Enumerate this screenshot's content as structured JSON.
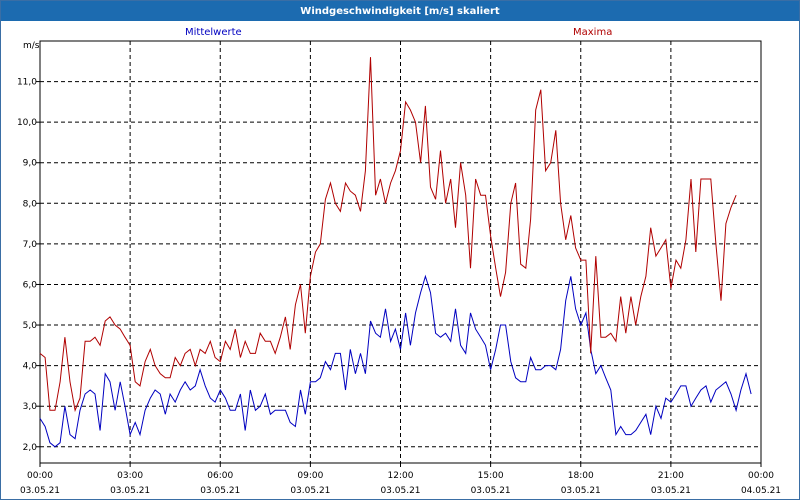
{
  "title": "Windgeschwindigkeit [m/s] skaliert",
  "chart_data": {
    "type": "line",
    "ylabel": "m/s",
    "ylim": [
      1.6,
      12.0
    ],
    "y_ticks": [
      {
        "value": 2.0,
        "label": "2,0"
      },
      {
        "value": 3.0,
        "label": "3,0"
      },
      {
        "value": 4.0,
        "label": "4,0"
      },
      {
        "value": 5.0,
        "label": "5,0"
      },
      {
        "value": 6.0,
        "label": "6,0"
      },
      {
        "value": 7.0,
        "label": "7,0"
      },
      {
        "value": 8.0,
        "label": "8,0"
      },
      {
        "value": 9.0,
        "label": "9,0"
      },
      {
        "value": 10.0,
        "label": "10,0"
      },
      {
        "value": 11.0,
        "label": "11,0"
      }
    ],
    "x_ticks": [
      {
        "hour": 0,
        "time": "00:00",
        "date": "03.05.21"
      },
      {
        "hour": 3,
        "time": "03:00",
        "date": "03.05.21"
      },
      {
        "hour": 6,
        "time": "06:00",
        "date": "03.05.21"
      },
      {
        "hour": 9,
        "time": "09:00",
        "date": "03.05.21"
      },
      {
        "hour": 12,
        "time": "12:00",
        "date": "03.05.21"
      },
      {
        "hour": 15,
        "time": "15:00",
        "date": "03.05.21"
      },
      {
        "hour": 18,
        "time": "18:00",
        "date": "03.05.21"
      },
      {
        "hour": 21,
        "time": "21:00",
        "date": "03.05.21"
      },
      {
        "hour": 24,
        "time": "00:00",
        "date": "04.05.21"
      }
    ],
    "xlim": [
      0,
      24
    ],
    "grid": true,
    "series": [
      {
        "name": "Mittelwerte",
        "color": "#0000c0",
        "points": [
          [
            0.0,
            2.7
          ],
          [
            0.17,
            2.5
          ],
          [
            0.33,
            2.1
          ],
          [
            0.5,
            2.0
          ],
          [
            0.67,
            2.1
          ],
          [
            0.83,
            3.0
          ],
          [
            1.0,
            2.3
          ],
          [
            1.17,
            2.2
          ],
          [
            1.33,
            2.9
          ],
          [
            1.5,
            3.3
          ],
          [
            1.67,
            3.4
          ],
          [
            1.83,
            3.3
          ],
          [
            2.0,
            2.4
          ],
          [
            2.17,
            3.8
          ],
          [
            2.33,
            3.6
          ],
          [
            2.5,
            2.9
          ],
          [
            2.67,
            3.6
          ],
          [
            2.83,
            3.0
          ],
          [
            3.0,
            2.3
          ],
          [
            3.17,
            2.6
          ],
          [
            3.33,
            2.3
          ],
          [
            3.5,
            2.9
          ],
          [
            3.67,
            3.2
          ],
          [
            3.83,
            3.4
          ],
          [
            4.0,
            3.3
          ],
          [
            4.17,
            2.8
          ],
          [
            4.33,
            3.3
          ],
          [
            4.5,
            3.1
          ],
          [
            4.67,
            3.4
          ],
          [
            4.83,
            3.6
          ],
          [
            5.0,
            3.4
          ],
          [
            5.17,
            3.5
          ],
          [
            5.33,
            3.9
          ],
          [
            5.5,
            3.5
          ],
          [
            5.67,
            3.2
          ],
          [
            5.83,
            3.1
          ],
          [
            6.0,
            3.4
          ],
          [
            6.17,
            3.2
          ],
          [
            6.33,
            2.9
          ],
          [
            6.5,
            2.9
          ],
          [
            6.67,
            3.3
          ],
          [
            6.83,
            2.4
          ],
          [
            7.0,
            3.4
          ],
          [
            7.17,
            2.9
          ],
          [
            7.33,
            3.0
          ],
          [
            7.5,
            3.3
          ],
          [
            7.67,
            2.8
          ],
          [
            7.83,
            2.9
          ],
          [
            8.0,
            2.9
          ],
          [
            8.17,
            2.9
          ],
          [
            8.33,
            2.6
          ],
          [
            8.5,
            2.5
          ],
          [
            8.67,
            3.4
          ],
          [
            8.83,
            2.8
          ],
          [
            9.0,
            3.6
          ],
          [
            9.17,
            3.6
          ],
          [
            9.33,
            3.7
          ],
          [
            9.5,
            4.1
          ],
          [
            9.67,
            3.9
          ],
          [
            9.83,
            4.3
          ],
          [
            10.0,
            4.3
          ],
          [
            10.17,
            3.4
          ],
          [
            10.33,
            4.4
          ],
          [
            10.5,
            3.8
          ],
          [
            10.67,
            4.3
          ],
          [
            10.83,
            3.8
          ],
          [
            11.0,
            5.1
          ],
          [
            11.17,
            4.8
          ],
          [
            11.33,
            4.7
          ],
          [
            11.5,
            5.4
          ],
          [
            11.67,
            4.6
          ],
          [
            11.83,
            4.9
          ],
          [
            12.0,
            4.4
          ],
          [
            12.17,
            5.3
          ],
          [
            12.33,
            4.5
          ],
          [
            12.5,
            5.3
          ],
          [
            12.67,
            5.8
          ],
          [
            12.83,
            6.2
          ],
          [
            13.0,
            5.8
          ],
          [
            13.17,
            4.8
          ],
          [
            13.33,
            4.7
          ],
          [
            13.5,
            4.8
          ],
          [
            13.67,
            4.6
          ],
          [
            13.83,
            5.4
          ],
          [
            14.0,
            4.5
          ],
          [
            14.17,
            4.3
          ],
          [
            14.33,
            5.3
          ],
          [
            14.5,
            4.9
          ],
          [
            14.67,
            4.7
          ],
          [
            14.83,
            4.5
          ],
          [
            15.0,
            3.9
          ],
          [
            15.17,
            4.4
          ],
          [
            15.33,
            5.0
          ],
          [
            15.5,
            5.0
          ],
          [
            15.67,
            4.1
          ],
          [
            15.83,
            3.7
          ],
          [
            16.0,
            3.6
          ],
          [
            16.17,
            3.6
          ],
          [
            16.33,
            4.2
          ],
          [
            16.5,
            3.9
          ],
          [
            16.67,
            3.9
          ],
          [
            16.83,
            4.0
          ],
          [
            17.0,
            4.0
          ],
          [
            17.17,
            3.9
          ],
          [
            17.33,
            4.4
          ],
          [
            17.5,
            5.6
          ],
          [
            17.67,
            6.2
          ],
          [
            17.83,
            5.4
          ],
          [
            18.0,
            5.0
          ],
          [
            18.17,
            5.3
          ],
          [
            18.33,
            4.4
          ],
          [
            18.5,
            3.8
          ],
          [
            18.67,
            4.0
          ],
          [
            18.83,
            3.7
          ],
          [
            19.0,
            3.4
          ],
          [
            19.17,
            2.3
          ],
          [
            19.33,
            2.5
          ],
          [
            19.5,
            2.3
          ],
          [
            19.67,
            2.3
          ],
          [
            19.83,
            2.4
          ],
          [
            20.0,
            2.6
          ],
          [
            20.17,
            2.8
          ],
          [
            20.33,
            2.3
          ],
          [
            20.5,
            3.0
          ],
          [
            20.67,
            2.7
          ],
          [
            20.83,
            3.2
          ],
          [
            21.0,
            3.1
          ],
          [
            21.17,
            3.3
          ],
          [
            21.33,
            3.5
          ],
          [
            21.5,
            3.5
          ],
          [
            21.67,
            3.0
          ],
          [
            21.83,
            3.2
          ],
          [
            22.0,
            3.4
          ],
          [
            22.17,
            3.5
          ],
          [
            22.33,
            3.1
          ],
          [
            22.5,
            3.4
          ],
          [
            22.67,
            3.5
          ],
          [
            22.83,
            3.6
          ],
          [
            23.0,
            3.3
          ],
          [
            23.17,
            2.9
          ],
          [
            23.33,
            3.4
          ],
          [
            23.5,
            3.8
          ],
          [
            23.67,
            3.3
          ]
        ]
      },
      {
        "name": "Maxima",
        "color": "#b00000",
        "points": [
          [
            0.0,
            4.3
          ],
          [
            0.17,
            4.2
          ],
          [
            0.33,
            2.9
          ],
          [
            0.5,
            2.9
          ],
          [
            0.67,
            3.6
          ],
          [
            0.83,
            4.7
          ],
          [
            1.0,
            3.6
          ],
          [
            1.17,
            2.9
          ],
          [
            1.33,
            3.2
          ],
          [
            1.5,
            4.6
          ],
          [
            1.67,
            4.6
          ],
          [
            1.83,
            4.7
          ],
          [
            2.0,
            4.5
          ],
          [
            2.17,
            5.1
          ],
          [
            2.33,
            5.2
          ],
          [
            2.5,
            5.0
          ],
          [
            2.67,
            4.9
          ],
          [
            2.83,
            4.7
          ],
          [
            3.0,
            4.5
          ],
          [
            3.17,
            3.6
          ],
          [
            3.33,
            3.5
          ],
          [
            3.5,
            4.1
          ],
          [
            3.67,
            4.4
          ],
          [
            3.83,
            4.0
          ],
          [
            4.0,
            3.8
          ],
          [
            4.17,
            3.7
          ],
          [
            4.33,
            3.7
          ],
          [
            4.5,
            4.2
          ],
          [
            4.67,
            4.0
          ],
          [
            4.83,
            4.3
          ],
          [
            5.0,
            4.4
          ],
          [
            5.17,
            4.0
          ],
          [
            5.33,
            4.4
          ],
          [
            5.5,
            4.3
          ],
          [
            5.67,
            4.6
          ],
          [
            5.83,
            4.2
          ],
          [
            6.0,
            4.1
          ],
          [
            6.17,
            4.6
          ],
          [
            6.33,
            4.4
          ],
          [
            6.5,
            4.9
          ],
          [
            6.67,
            4.2
          ],
          [
            6.83,
            4.6
          ],
          [
            7.0,
            4.3
          ],
          [
            7.17,
            4.3
          ],
          [
            7.33,
            4.8
          ],
          [
            7.5,
            4.6
          ],
          [
            7.67,
            4.6
          ],
          [
            7.83,
            4.3
          ],
          [
            8.0,
            4.7
          ],
          [
            8.17,
            5.2
          ],
          [
            8.33,
            4.4
          ],
          [
            8.5,
            5.5
          ],
          [
            8.67,
            6.0
          ],
          [
            8.83,
            4.8
          ],
          [
            9.0,
            6.2
          ],
          [
            9.17,
            6.8
          ],
          [
            9.33,
            7.0
          ],
          [
            9.5,
            8.1
          ],
          [
            9.67,
            8.5
          ],
          [
            9.83,
            8.0
          ],
          [
            10.0,
            7.8
          ],
          [
            10.17,
            8.5
          ],
          [
            10.33,
            8.3
          ],
          [
            10.5,
            8.2
          ],
          [
            10.67,
            7.8
          ],
          [
            10.83,
            8.8
          ],
          [
            11.0,
            11.6
          ],
          [
            11.17,
            8.2
          ],
          [
            11.33,
            8.6
          ],
          [
            11.5,
            8.0
          ],
          [
            11.67,
            8.5
          ],
          [
            11.83,
            8.8
          ],
          [
            12.0,
            9.3
          ],
          [
            12.17,
            10.5
          ],
          [
            12.33,
            10.3
          ],
          [
            12.5,
            10.0
          ],
          [
            12.67,
            9.0
          ],
          [
            12.83,
            10.4
          ],
          [
            13.0,
            8.4
          ],
          [
            13.17,
            8.1
          ],
          [
            13.33,
            9.3
          ],
          [
            13.5,
            8.0
          ],
          [
            13.67,
            8.6
          ],
          [
            13.83,
            7.4
          ],
          [
            14.0,
            9.0
          ],
          [
            14.17,
            8.2
          ],
          [
            14.33,
            6.4
          ],
          [
            14.5,
            8.6
          ],
          [
            14.67,
            8.2
          ],
          [
            14.83,
            8.2
          ],
          [
            15.0,
            7.2
          ],
          [
            15.17,
            6.4
          ],
          [
            15.33,
            5.7
          ],
          [
            15.5,
            6.3
          ],
          [
            15.67,
            8.0
          ],
          [
            15.83,
            8.5
          ],
          [
            16.0,
            6.5
          ],
          [
            16.17,
            6.4
          ],
          [
            16.33,
            7.6
          ],
          [
            16.5,
            10.3
          ],
          [
            16.67,
            10.8
          ],
          [
            16.83,
            8.8
          ],
          [
            17.0,
            9.0
          ],
          [
            17.17,
            9.8
          ],
          [
            17.33,
            8.0
          ],
          [
            17.5,
            7.1
          ],
          [
            17.67,
            7.7
          ],
          [
            17.83,
            6.9
          ],
          [
            18.0,
            6.6
          ],
          [
            18.17,
            6.6
          ],
          [
            18.33,
            4.3
          ],
          [
            18.5,
            6.7
          ],
          [
            18.67,
            4.7
          ],
          [
            18.83,
            4.7
          ],
          [
            19.0,
            4.8
          ],
          [
            19.17,
            4.6
          ],
          [
            19.33,
            5.7
          ],
          [
            19.5,
            4.8
          ],
          [
            19.67,
            5.7
          ],
          [
            19.83,
            5.0
          ],
          [
            20.0,
            5.7
          ],
          [
            20.17,
            6.2
          ],
          [
            20.33,
            7.4
          ],
          [
            20.5,
            6.7
          ],
          [
            20.67,
            6.9
          ],
          [
            20.83,
            7.1
          ],
          [
            21.0,
            5.9
          ],
          [
            21.17,
            6.6
          ],
          [
            21.33,
            6.4
          ],
          [
            21.5,
            7.1
          ],
          [
            21.67,
            8.6
          ],
          [
            21.83,
            6.8
          ],
          [
            22.0,
            8.6
          ],
          [
            22.17,
            8.6
          ],
          [
            22.33,
            8.6
          ],
          [
            22.5,
            7.0
          ],
          [
            22.67,
            5.6
          ],
          [
            22.83,
            7.5
          ],
          [
            23.0,
            7.9
          ],
          [
            23.17,
            8.2
          ]
        ]
      }
    ]
  }
}
